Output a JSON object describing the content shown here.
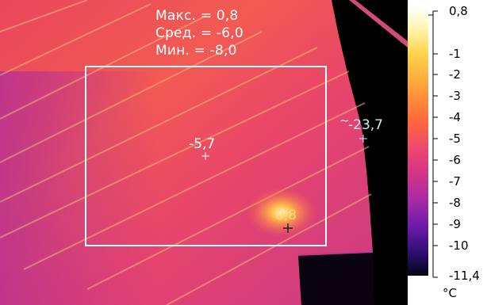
{
  "stats": {
    "max_line": "Макс. = 0,8",
    "avg_line": "Сред. = -6,0",
    "min_line": "Мин. = -8,0"
  },
  "spots": {
    "roi_center": "-5,7",
    "hot_spot": "0,8",
    "cold_spot": "-23,7",
    "cold_spot_prefix": "~"
  },
  "scale": {
    "top": "0,8",
    "ticks": [
      "-1",
      "-2",
      "-3",
      "-4",
      "-5",
      "-6",
      "-7",
      "-8",
      "-9",
      "-10"
    ],
    "bottom": "-11,4",
    "unit": "°C"
  },
  "colors": {
    "palette": [
      "#ffffff",
      "#fff6b0",
      "#ffd24a",
      "#ffa13a",
      "#ff6a3a",
      "#f04a6a",
      "#d43486",
      "#a82aa6",
      "#6a1aa8",
      "#2a0f6e",
      "#05050f"
    ],
    "roi_box": "#ffffff",
    "background_wall": "#000000"
  }
}
